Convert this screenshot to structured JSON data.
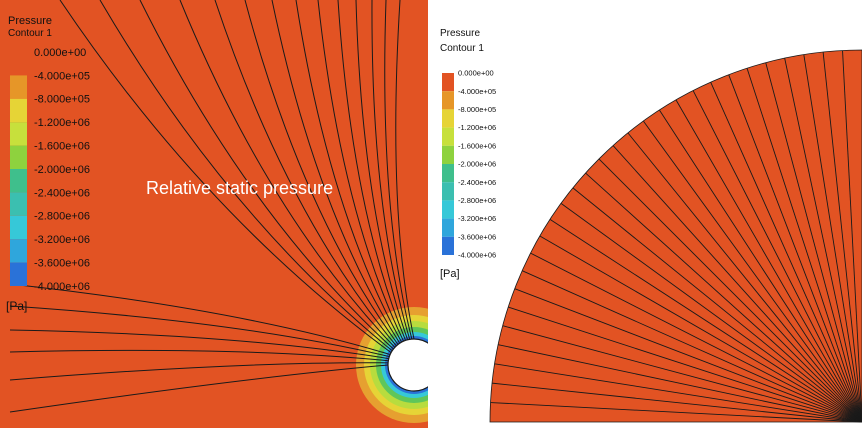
{
  "colors": {
    "field": "#E25323",
    "contour_line": "#1a1a1a",
    "legend_bands": [
      "#E25323",
      "#E69628",
      "#E6D436",
      "#C7E03C",
      "#8ED23E",
      "#52C45A",
      "#3FBF8C",
      "#3BBFB0",
      "#36C8D8",
      "#2FA6DC",
      "#2A72D8"
    ]
  },
  "left_panel": {
    "overlay_text": "Relative static pressure",
    "legend": {
      "title_line1": "Pressure",
      "title_line2": "Contour 1",
      "labels": [
        "0.000e+00",
        "-4.000e+05",
        "-8.000e+05",
        "-1.200e+06",
        "-1.600e+06",
        "-2.000e+06",
        "-2.400e+06",
        "-2.800e+06",
        "-3.200e+06",
        "-3.600e+06",
        "-4.000e+06"
      ],
      "unit": "[Pa]"
    }
  },
  "right_panel": {
    "legend": {
      "title_line1": "Pressure",
      "title_line2": "Contour 1",
      "labels": [
        "0.000e+00",
        "-4.000e+05",
        "-8.000e+05",
        "-1.200e+06",
        "-1.600e+06",
        "-2.000e+06",
        "-2.400e+06",
        "-2.800e+06",
        "-3.200e+06",
        "-3.600e+06",
        "-4.000e+06"
      ],
      "unit": "[Pa]"
    }
  }
}
